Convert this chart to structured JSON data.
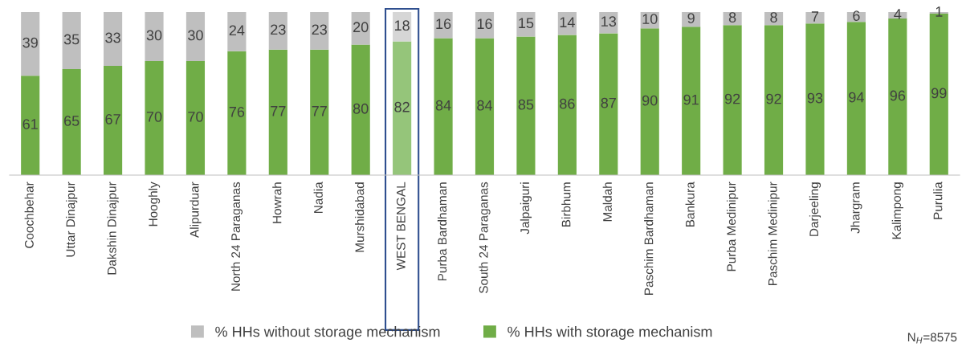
{
  "chart_data": {
    "type": "bar",
    "stacked": true,
    "data_labels": true,
    "grid": false,
    "legend": "bottom",
    "categories": [
      "Coochbehar",
      "Uttar Dinajpur",
      "Dakshin Dinajpur",
      "Hooghly",
      "Alipurduar",
      "North 24 Paraganas",
      "Howrah",
      "Nadia",
      "Murshidabad",
      "WEST BENGAL",
      "Purba Bardhaman",
      "South 24 Paraganas",
      "Jalpaiguri",
      "Birbhum",
      "Maldah",
      "Paschim Bardhaman",
      "Bankura",
      "Purba Medinipur",
      "Paschim Medinipur",
      "Darjeeling",
      "Jhargram",
      "Kalimpong",
      "Purulia"
    ],
    "series": [
      {
        "name": "% HHs with storage mechanism",
        "color": "#70ad47",
        "colors": [
          "#70ad47",
          "#70ad47",
          "#70ad47",
          "#70ad47",
          "#70ad47",
          "#70ad47",
          "#70ad47",
          "#70ad47",
          "#70ad47",
          "#95c57a",
          "#70ad47",
          "#70ad47",
          "#70ad47",
          "#70ad47",
          "#70ad47",
          "#70ad47",
          "#70ad47",
          "#70ad47",
          "#70ad47",
          "#70ad47",
          "#70ad47",
          "#70ad47",
          "#70ad47"
        ],
        "values": [
          61,
          65,
          67,
          70,
          70,
          76,
          77,
          77,
          80,
          82,
          84,
          84,
          85,
          86,
          87,
          90,
          91,
          92,
          92,
          93,
          94,
          96,
          99
        ]
      },
      {
        "name": "% HHs without storage mechanism",
        "color": "#bfbfbf",
        "colors": [
          "#bfbfbf",
          "#bfbfbf",
          "#bfbfbf",
          "#bfbfbf",
          "#bfbfbf",
          "#bfbfbf",
          "#bfbfbf",
          "#bfbfbf",
          "#bfbfbf",
          "#d6d6d6",
          "#bfbfbf",
          "#bfbfbf",
          "#bfbfbf",
          "#bfbfbf",
          "#bfbfbf",
          "#bfbfbf",
          "#bfbfbf",
          "#bfbfbf",
          "#bfbfbf",
          "#bfbfbf",
          "#bfbfbf",
          "#bfbfbf",
          "#bfbfbf"
        ],
        "values": [
          39,
          35,
          33,
          30,
          30,
          24,
          23,
          23,
          20,
          18,
          16,
          16,
          15,
          14,
          13,
          10,
          9,
          8,
          8,
          7,
          6,
          4,
          1
        ]
      }
    ],
    "annotations": [
      "N$_{H}$=8575"
    ]
  }
}
